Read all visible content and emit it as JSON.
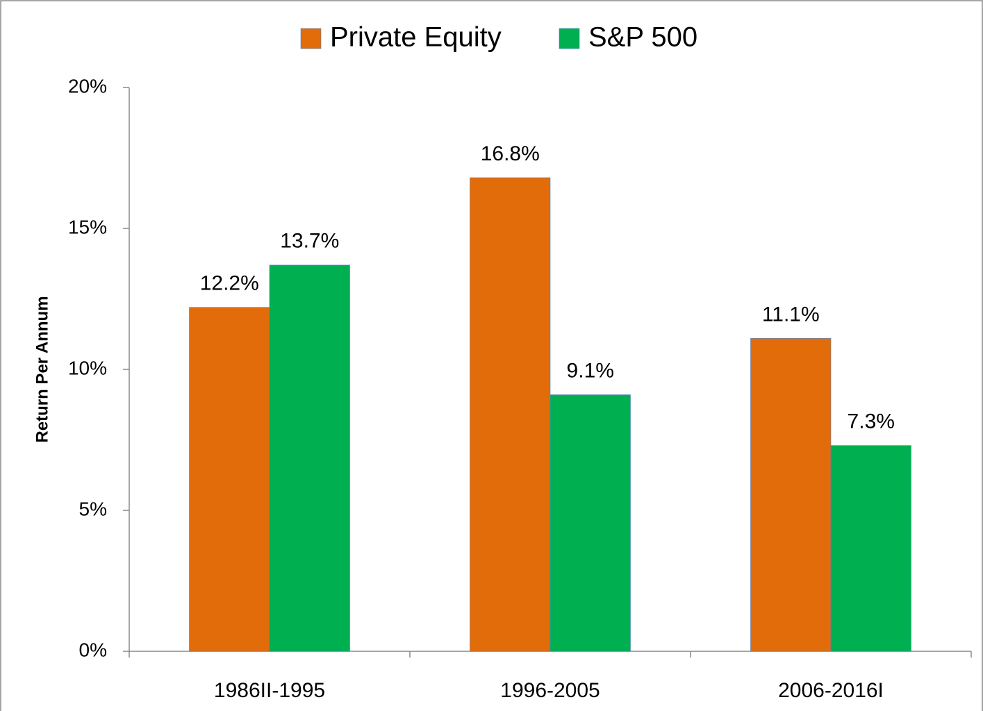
{
  "chart_data": {
    "type": "bar",
    "ylabel": "Return Per Annum",
    "categories": [
      "1986II-1995",
      "1996-2005",
      "2006-2016I"
    ],
    "series": [
      {
        "name": "Private Equity",
        "color": "#e36c0a",
        "values": [
          12.2,
          16.8,
          11.1
        ],
        "value_labels": [
          "12.2%",
          "16.8%",
          "11.1%"
        ]
      },
      {
        "name": "S&P 500",
        "color": "#00b050",
        "values": [
          13.7,
          9.1,
          7.3
        ],
        "value_labels": [
          "13.7%",
          "9.1%",
          "7.3%"
        ]
      }
    ],
    "ylim": [
      0,
      20
    ],
    "yticks": [
      {
        "value": 0,
        "label": "0%"
      },
      {
        "value": 5,
        "label": "5%"
      },
      {
        "value": 10,
        "label": "10%"
      },
      {
        "value": 15,
        "label": "15%"
      },
      {
        "value": 20,
        "label": "20%"
      }
    ],
    "legend": "top"
  }
}
